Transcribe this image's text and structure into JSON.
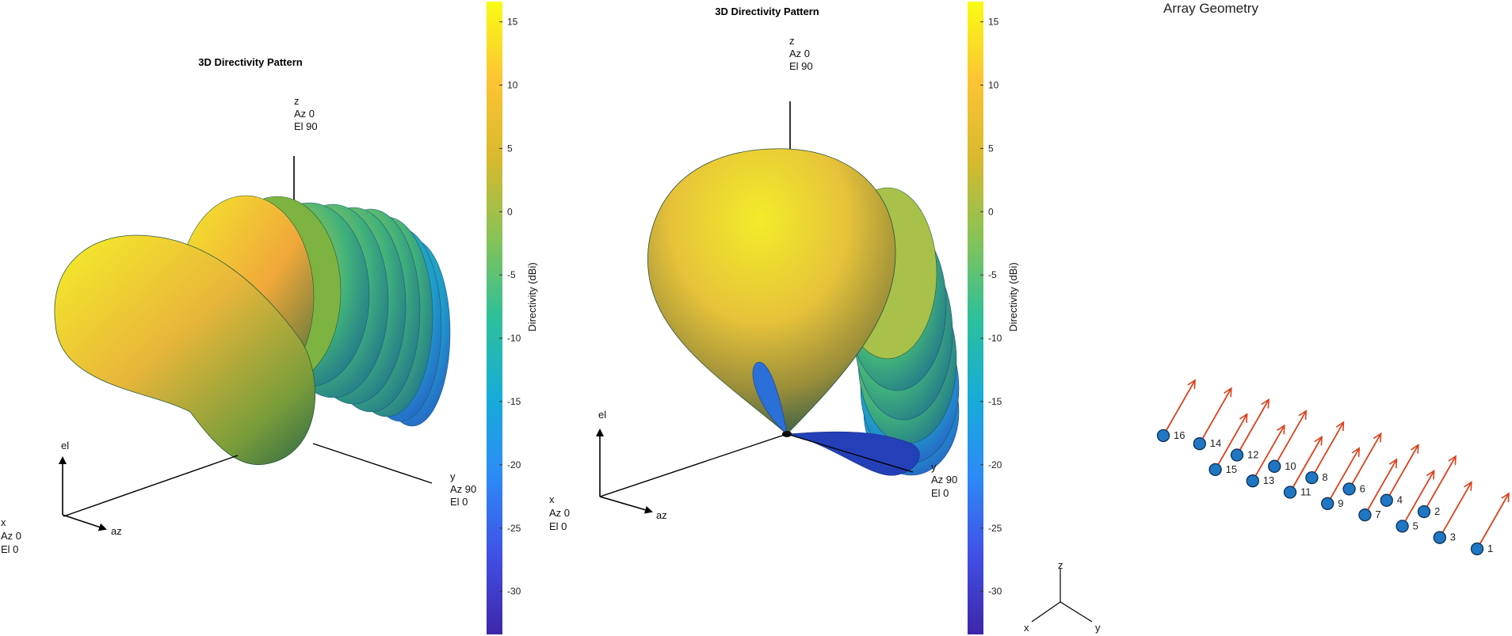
{
  "chart_data": [
    {
      "type": "surface3d",
      "title": "3D Directivity Pattern",
      "z_label": [
        "z",
        "Az 0",
        "El 90"
      ],
      "y_label": [
        "y",
        "Az 90",
        "El 0"
      ],
      "x_label": [
        "x",
        "Az 0",
        "El 0"
      ],
      "az_label": "az",
      "el_label": "el",
      "colorbar": {
        "label": "Directivity (dBi)",
        "range": [
          -33.4,
          16.6
        ],
        "ticks": [
          15,
          10,
          5,
          0,
          -5,
          -10,
          -15,
          -20,
          -25,
          -30
        ],
        "colors": [
          "#3e26a8",
          "#4150e6",
          "#2c8bf6",
          "#17acd8",
          "#2dc09b",
          "#86c356",
          "#d8b92e",
          "#fcc434",
          "#f9fb14"
        ]
      }
    },
    {
      "type": "surface3d",
      "title": "3D Directivity Pattern",
      "z_label": [
        "z",
        "Az 0",
        "El 90"
      ],
      "y_label": [
        "y",
        "Az 90",
        "El 0"
      ],
      "x_label": [
        "x",
        "Az 0",
        "El 0"
      ],
      "az_label": "az",
      "el_label": "el",
      "colorbar": {
        "label": "Directivity (dBi)",
        "range": [
          -33.4,
          16.6
        ],
        "ticks": [
          15,
          10,
          5,
          0,
          -5,
          -10,
          -15,
          -20,
          -25,
          -30
        ]
      }
    },
    {
      "type": "scatter3d",
      "title": "Array Geometry",
      "axes": [
        "z",
        "x",
        "y"
      ],
      "element_color": "#1f77c4",
      "arrow_color": "#d9421d",
      "elements": [
        "1",
        "2",
        "3",
        "4",
        "5",
        "6",
        "7",
        "8",
        "9",
        "10",
        "11",
        "12",
        "13",
        "14",
        "15",
        "16"
      ]
    }
  ]
}
